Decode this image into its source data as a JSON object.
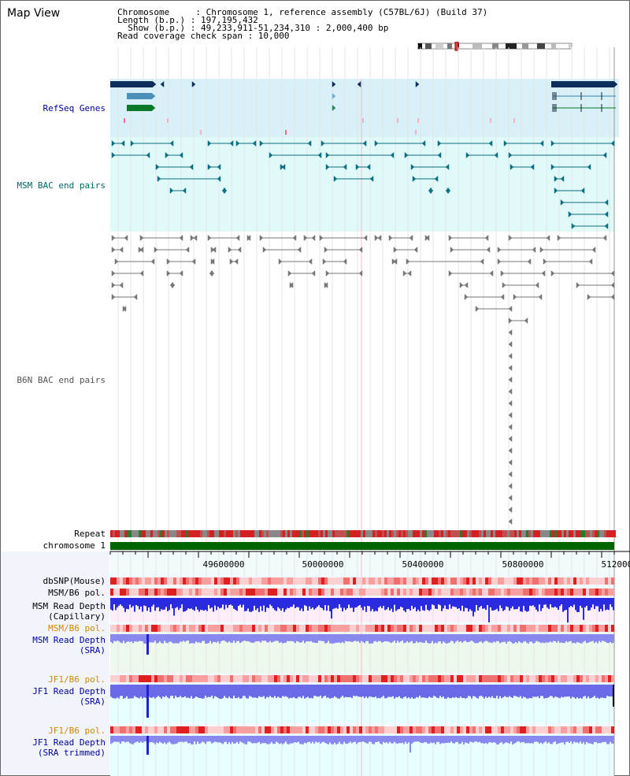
{
  "page": {
    "title": "Map View"
  },
  "info": {
    "line1": "Chromosome     : Chromosome 1, reference assembly (C57BL/6J) (Build 37)",
    "line2": "Length (b.p.) : 197,195,432",
    "line3": "  Show (b.p.) : 49,233,911-51,234,310 : 2,000,400 bp",
    "line4": "Read coverage check span : 10,000"
  },
  "tracks": {
    "refseq": "RefSeq Genes",
    "msm_bac": "MSM BAC end pairs",
    "b6n_bac": "B6N BAC end pairs",
    "repeat": "Repeat",
    "chromosome": "chromosome 1",
    "dbsnp": "dbSNP(Mouse)",
    "msm_b6_pol_1": "MSM/B6 pol.",
    "msm_depth_cap_1": "MSM Read Depth",
    "msm_depth_cap_2": "(Capillary)",
    "msm_b6_pol_2": "MSM/B6 pol.",
    "msm_depth_sra_1": "MSM Read Depth",
    "msm_depth_sra_2": "(SRA)",
    "jf1_b6_pol_1": "JF1/B6 pol.",
    "jf1_depth_sra_1": "JF1 Read Depth",
    "jf1_depth_sra_2": "(SRA)",
    "jf1_b6_pol_2": "JF1/B6 pol.",
    "jf1_depth_trim_1": "JF1 Read Depth",
    "jf1_depth_trim_2": "(SRA trimmed)"
  },
  "axis": {
    "ticks": [
      "49600000",
      "50000000",
      "50400000",
      "50800000",
      "51200000"
    ]
  },
  "colors": {
    "label_black": "#000000",
    "label_navy": "#000099",
    "label_teal": "#006666",
    "label_gray": "#555555",
    "label_orange": "#cc8800",
    "refseq_bg": "#d8f0f8",
    "msm_bg": "#e0fafa",
    "chromosome_bar": "#006400",
    "capillary_bg": "#fdeefa",
    "sra_bg": "#eef9ee",
    "jf1_bg": "#e6ffff"
  }
}
